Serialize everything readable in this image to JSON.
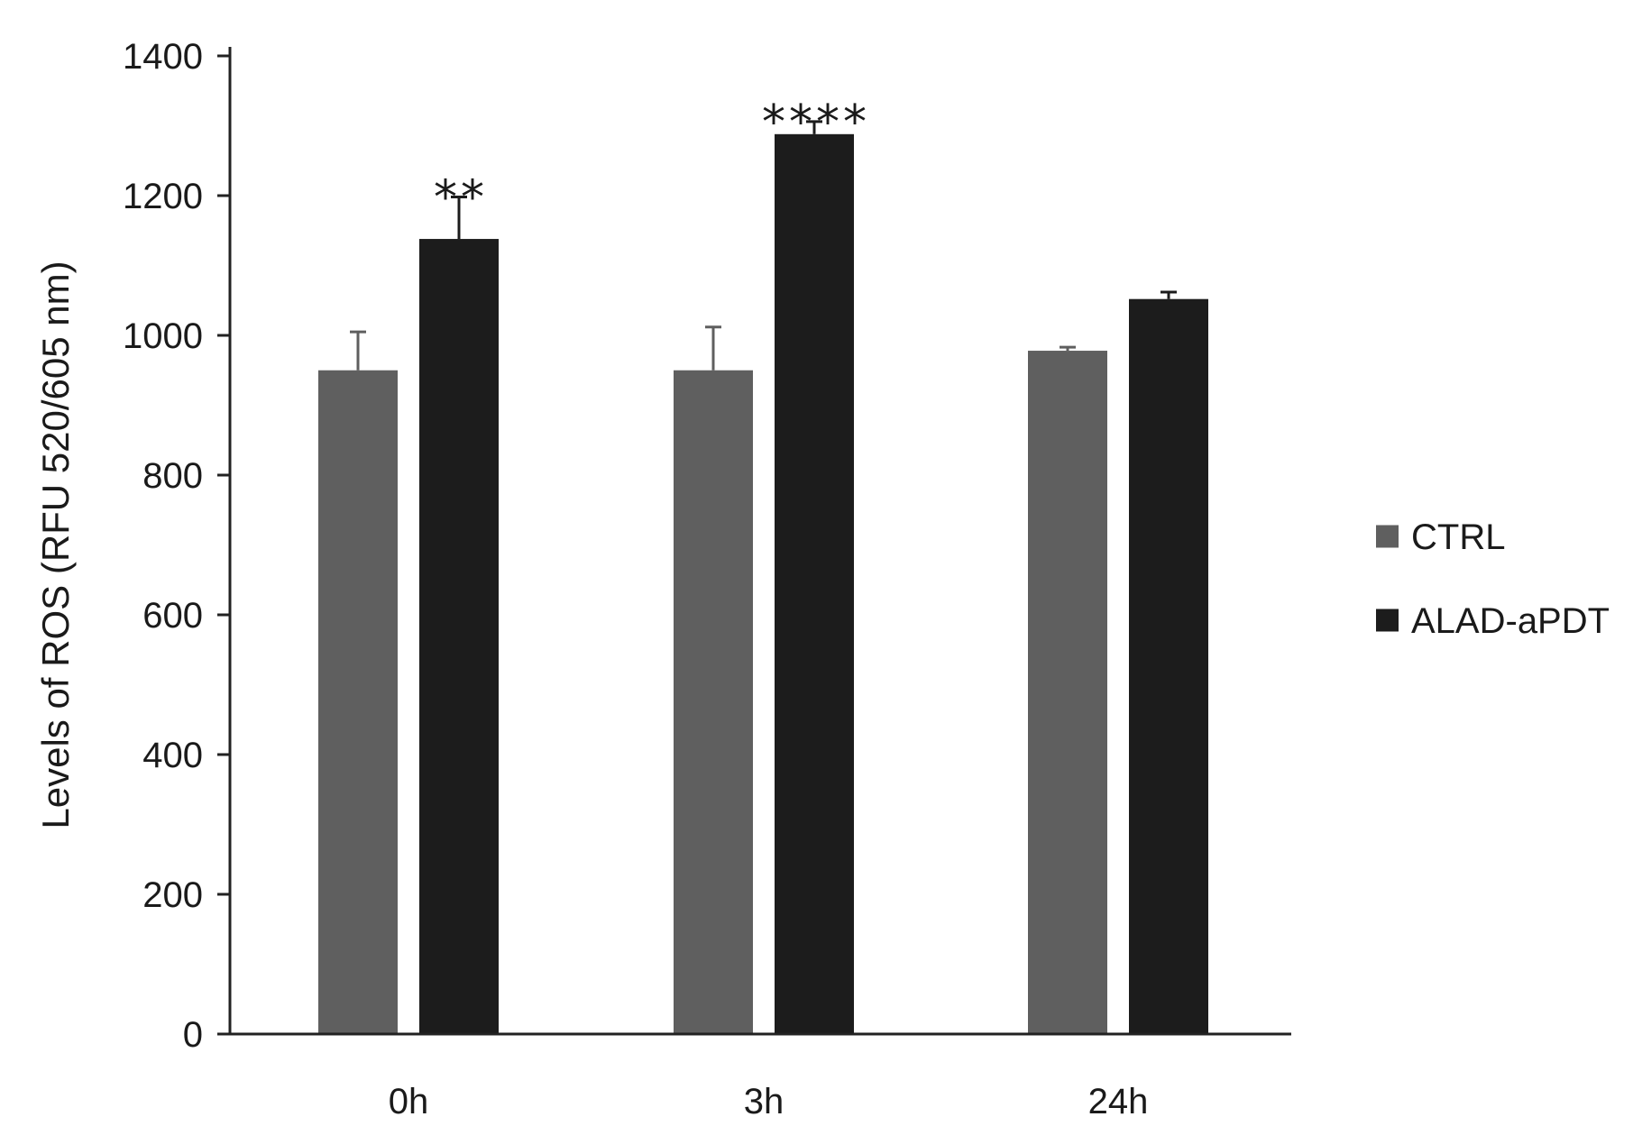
{
  "chart_data": {
    "type": "bar",
    "title": "",
    "xlabel": "",
    "ylabel": "Levels of ROS (RFU 520/605 nm)",
    "ylim": [
      0,
      1400
    ],
    "yticks": [
      0,
      200,
      400,
      600,
      800,
      1000,
      1200,
      1400
    ],
    "categories": [
      "0h",
      "3h",
      "24h"
    ],
    "series": [
      {
        "name": "CTRL",
        "color": "#5f5f5f",
        "values": [
          950,
          950,
          978
        ],
        "errors": [
          55,
          62,
          5
        ],
        "significance": [
          "",
          "",
          ""
        ]
      },
      {
        "name": "ALAD-aPDT",
        "color": "#1c1c1c",
        "values": [
          1138,
          1288,
          1052
        ],
        "errors": [
          60,
          18,
          10
        ],
        "significance": [
          "**",
          "****",
          ""
        ]
      }
    ],
    "legend": "right",
    "grid": false
  }
}
